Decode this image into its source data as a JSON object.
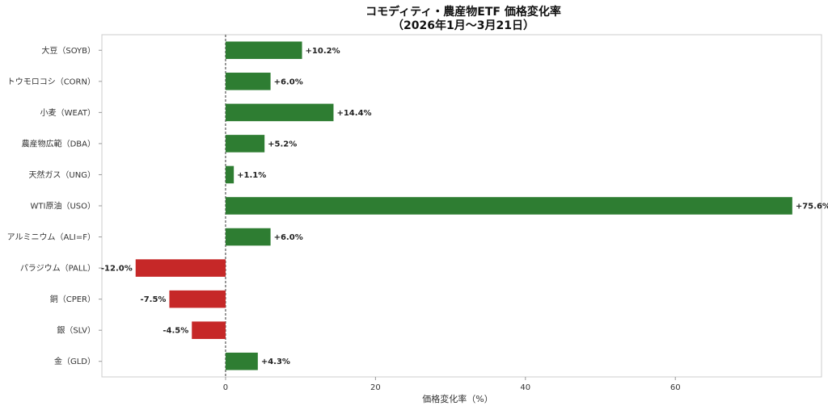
{
  "chart_data": {
    "type": "bar",
    "orientation": "horizontal",
    "title_line1": "コモディティ・農産物ETF 価格変化率",
    "title_line2": "（2026年1月〜3月21日）",
    "xlabel": "価格変化率（%）",
    "ylabel": "",
    "xlim": [
      -16.5,
      79.5
    ],
    "xticks": [
      0,
      20,
      40,
      60
    ],
    "grid": false,
    "zero_line": "dashed",
    "categories": [
      "大豆（SOYB）",
      "トウモロコシ（CORN）",
      "小麦（WEAT）",
      "農産物広範（DBA）",
      "天然ガス（UNG）",
      "WTI原油（USO）",
      "アルミニウム（ALI=F）",
      "パラジウム（PALL）",
      "銅（CPER）",
      "銀（SLV）",
      "金（GLD）"
    ],
    "values": [
      10.2,
      6.0,
      14.4,
      5.2,
      1.1,
      75.6,
      6.0,
      -12.0,
      -7.5,
      -4.5,
      4.3
    ],
    "value_labels": [
      "+10.2%",
      "+6.0%",
      "+14.4%",
      "+5.2%",
      "+1.1%",
      "+75.6%",
      "+6.0%",
      "-12.0%",
      "-7.5%",
      "-4.5%",
      "+4.3%"
    ],
    "colors": {
      "positive": "#2e7d32",
      "negative": "#c62828",
      "axis": "#cccccc",
      "zero_line": "#333333"
    }
  }
}
